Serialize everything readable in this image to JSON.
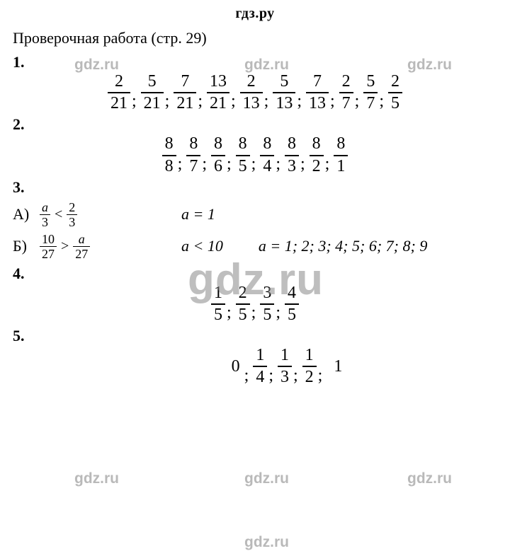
{
  "header": "гдз.ру",
  "title": "Проверочная работа (стр. 29)",
  "watermark_small": "gdz.ru",
  "watermark_big": "gdz.ru",
  "q1": {
    "label": "1.",
    "fracs": [
      {
        "n": "2",
        "d": "21"
      },
      {
        "n": "5",
        "d": "21"
      },
      {
        "n": "7",
        "d": "21"
      },
      {
        "n": "13",
        "d": "21"
      },
      {
        "n": "2",
        "d": "13"
      },
      {
        "n": "5",
        "d": "13"
      },
      {
        "n": "7",
        "d": "13"
      },
      {
        "n": "2",
        "d": "7"
      },
      {
        "n": "5",
        "d": "7"
      },
      {
        "n": "2",
        "d": "5"
      }
    ]
  },
  "q2": {
    "label": "2.",
    "fracs": [
      {
        "n": "8",
        "d": "8"
      },
      {
        "n": "8",
        "d": "7"
      },
      {
        "n": "8",
        "d": "6"
      },
      {
        "n": "8",
        "d": "5"
      },
      {
        "n": "8",
        "d": "4"
      },
      {
        "n": "8",
        "d": "3"
      },
      {
        "n": "8",
        "d": "2"
      },
      {
        "n": "8",
        "d": "1"
      }
    ]
  },
  "q3": {
    "label": "3.",
    "A": {
      "letter": "А)",
      "lhs": {
        "n": "a",
        "d": "3"
      },
      "op": "<",
      "rhs": {
        "n": "2",
        "d": "3"
      },
      "mid": "a = 1"
    },
    "B": {
      "letter": "Б)",
      "lhs": {
        "n": "10",
        "d": "27"
      },
      "op": ">",
      "rhs": {
        "n": "a",
        "d": "27"
      },
      "mid": "a < 10",
      "right": "a = 1; 2; 3; 4; 5; 6; 7; 8; 9"
    }
  },
  "q4": {
    "label": "4.",
    "fracs": [
      {
        "n": "1",
        "d": "5"
      },
      {
        "n": "2",
        "d": "5"
      },
      {
        "n": "3",
        "d": "5"
      },
      {
        "n": "4",
        "d": "5"
      }
    ]
  },
  "q5": {
    "label": "5.",
    "leading": "0",
    "fracs": [
      {
        "n": "1",
        "d": "4"
      },
      {
        "n": "1",
        "d": "3"
      },
      {
        "n": "1",
        "d": "2"
      }
    ],
    "trailing": "1"
  },
  "sep": ";"
}
